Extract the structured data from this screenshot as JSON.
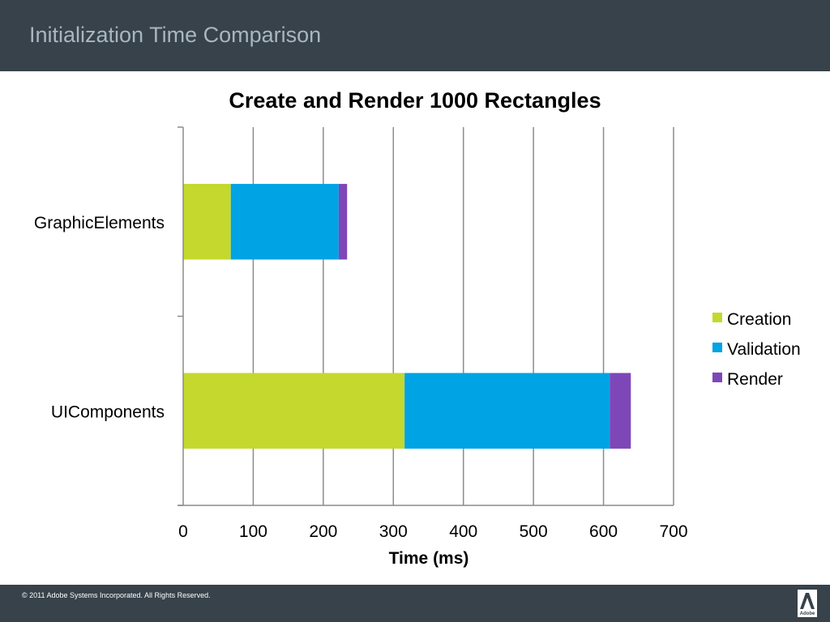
{
  "slide": {
    "title": "Initialization Time Comparison",
    "copyright": "© 2011 Adobe Systems Incorporated.  All Rights Reserved.",
    "logo_text": "Adobe"
  },
  "chart_data": {
    "type": "bar",
    "orientation": "horizontal",
    "stacked": true,
    "title": "Create and Render 1000 Rectangles",
    "xlabel": "Time (ms)",
    "ylabel": "",
    "xlim": [
      0,
      700
    ],
    "xticks": [
      0,
      100,
      200,
      300,
      400,
      500,
      600,
      700
    ],
    "grid": true,
    "legend_position": "right",
    "categories": [
      "GraphicElements",
      "UIComponents"
    ],
    "series": [
      {
        "name": "Creation",
        "color": "#c4d82e",
        "values": [
          68,
          316
        ]
      },
      {
        "name": "Validation",
        "color": "#00a3e4",
        "values": [
          154,
          293
        ]
      },
      {
        "name": "Render",
        "color": "#7e47b8",
        "values": [
          12,
          30
        ]
      }
    ]
  }
}
